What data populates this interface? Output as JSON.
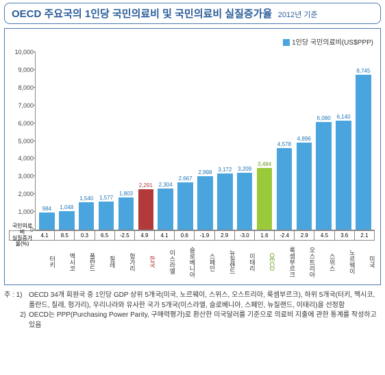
{
  "title": {
    "main": "OECD 주요국의 1인당 국민의료비 및 국민의료비 실질증가율",
    "sub": "2012년 기준"
  },
  "chart": {
    "type": "bar",
    "legend_label": "1인당 국민의료비(US$PPP)",
    "legend_swatch": "#4aa4de",
    "ylim": [
      0,
      10000
    ],
    "ytick_step": 1000,
    "row_header": "국민의료비\n실질증가율(%)",
    "default_bar_color": "#4aa4de",
    "default_label_color": "#1e74b5",
    "default_cat_color": "#333333",
    "points": [
      {
        "cat": "터키",
        "v": 984,
        "g": "4.1"
      },
      {
        "cat": "멕시코",
        "v": 1048,
        "g": "8.5"
      },
      {
        "cat": "폴란드",
        "v": 1540,
        "g": "0.3"
      },
      {
        "cat": "칠레",
        "v": 1577,
        "g": "6.5"
      },
      {
        "cat": "헝가리",
        "v": 1803,
        "g": "-2.5"
      },
      {
        "cat": "한국",
        "v": 2291,
        "g": "4.9",
        "bar_color": "#b23a3a",
        "label_color": "#b23a3a",
        "cat_color": "#b23a3a"
      },
      {
        "cat": "이스라엘",
        "v": 2304,
        "g": "4.1"
      },
      {
        "cat": "슬로베니아",
        "v": 2667,
        "g": "0.6"
      },
      {
        "cat": "스페인",
        "v": 2998,
        "g": "-1.9"
      },
      {
        "cat": "뉴질랜드",
        "v": 3172,
        "g": "2.9"
      },
      {
        "cat": "이태리",
        "v": 3209,
        "g": "-3.0"
      },
      {
        "cat": "OECD",
        "v": 3484,
        "g": "1.6",
        "bar_color": "#9ac93a",
        "label_color": "#6a9a1e",
        "cat_color": "#6a9a1e"
      },
      {
        "cat": "룩셈부르크",
        "v": 4578,
        "g": "-2.4"
      },
      {
        "cat": "오스트리아",
        "v": 4896,
        "g": "2.9"
      },
      {
        "cat": "스위스",
        "v": 6080,
        "g": "4.5"
      },
      {
        "cat": "노르웨이",
        "v": 6140,
        "g": "3.6"
      },
      {
        "cat": "미국",
        "v": 8745,
        "g": "2.1"
      }
    ]
  },
  "notes": {
    "lead1": "주 : 1)",
    "body1": "OECD 34개 회원국 중 1인당 GDP 상위 5개국(미국, 노르웨이, 스위스, 오스트리아, 룩셈부르크), 하위 5개국(터키, 멕시코, 폴란드, 칠레, 헝가리), 우리나라와 유사한 국가 5개국(이스라엘, 슬로베니아, 스페인, 뉴질랜드, 이태리)을 선정함",
    "lead2": "2)",
    "body2": "OECD는 PPP(Purchasing Power Parity, 구매력평가)로 환산한 미국달러를 기준으로 의료비 지출에 관한 통계를 작성하고 있음"
  }
}
